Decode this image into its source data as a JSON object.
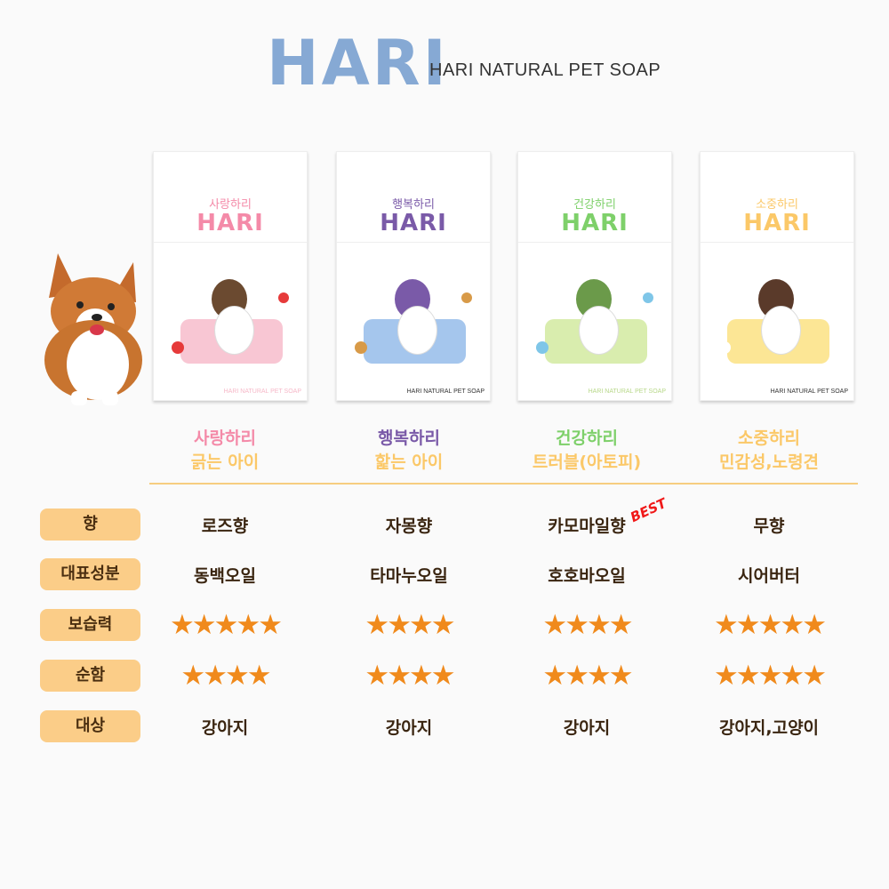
{
  "header": {
    "logo": "HARI",
    "subtitle": "HARI NATURAL PET SOAP"
  },
  "products": [
    {
      "box_name": "사랑하리",
      "box_logo": "HARI",
      "box_footer": "HARI NATURAL PET SOAP",
      "name": "사랑하리",
      "target_desc": "긁는 아이",
      "color": "#f48aa8",
      "scent": "로즈향",
      "ingredient": "동백오일",
      "moisture": 5,
      "mildness": 4,
      "for": "강아지"
    },
    {
      "box_name": "행복하리",
      "box_logo": "HARI",
      "box_footer": "HARI NATURAL PET SOAP",
      "name": "행복하리",
      "target_desc": "핥는 아이",
      "color": "#7a5aa8",
      "scent": "자몽향",
      "ingredient": "타마누오일",
      "moisture": 4,
      "mildness": 4,
      "for": "강아지"
    },
    {
      "box_name": "건강하리",
      "box_logo": "HARI",
      "box_footer": "HARI NATURAL PET SOAP",
      "name": "건강하리",
      "target_desc": "트러블(아토피)",
      "color": "#7ed06a",
      "scent": "카모마일향",
      "ingredient": "호호바오일",
      "moisture": 4,
      "mildness": 4,
      "for": "강아지"
    },
    {
      "box_name": "소중하리",
      "box_logo": "HARI",
      "box_footer": "HARI NATURAL PET SOAP",
      "name": "소중하리",
      "target_desc": "민감성,노령견",
      "color": "#fbc868",
      "scent": "무향",
      "ingredient": "시어버터",
      "moisture": 5,
      "mildness": 5,
      "for": "강아지,고양이"
    }
  ],
  "badge": "BEST",
  "row_labels": [
    "향",
    "대표성분",
    "보습력",
    "순함",
    "대상"
  ],
  "colors": {
    "subtitle": "#fbc868",
    "star": "#f08a1c",
    "pill": "#fbcd88",
    "text": "#3a2510"
  }
}
